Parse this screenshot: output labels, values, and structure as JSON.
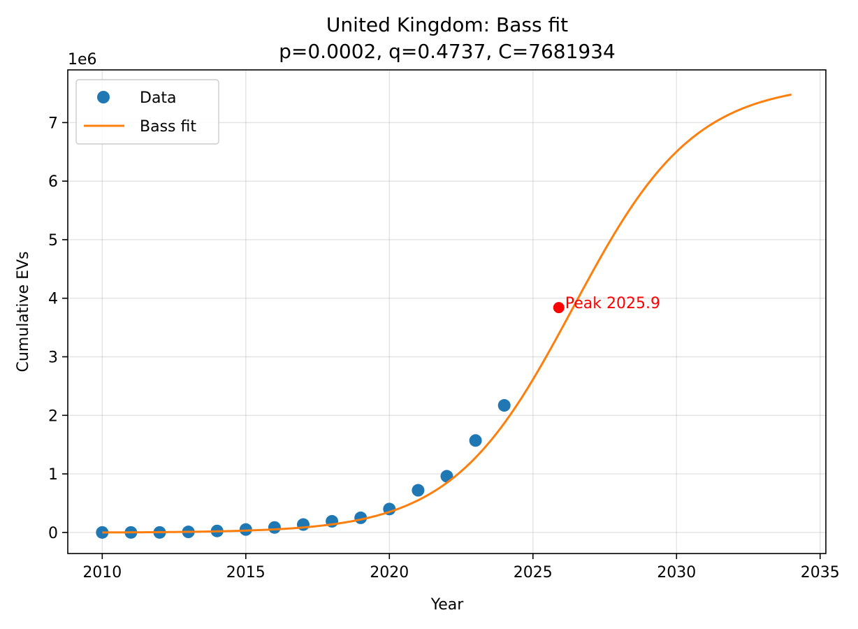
{
  "chart_data": {
    "type": "scatter",
    "title": "United Kingdom: Bass fit",
    "subtitle": "p=0.0002, q=0.4737, C=7681934",
    "xlabel": "Year",
    "ylabel": "Cumulative EVs",
    "y_multiplier_label": "1e6",
    "xlim": [
      2008.8,
      2035.2
    ],
    "ylim": [
      -0.36,
      7.9
    ],
    "x_ticks": [
      2010,
      2015,
      2020,
      2025,
      2030,
      2035
    ],
    "x_tick_labels": [
      "2010",
      "2015",
      "2020",
      "2025",
      "2030",
      "2035"
    ],
    "y_ticks": [
      0,
      1,
      2,
      3,
      4,
      5,
      6,
      7
    ],
    "y_tick_labels": [
      "0",
      "1",
      "2",
      "3",
      "4",
      "5",
      "6",
      "7"
    ],
    "grid": true,
    "legend_position": "top-left",
    "series": [
      {
        "name": "Data",
        "kind": "scatter",
        "color": "#1f77b4",
        "x": [
          2010,
          2011,
          2012,
          2013,
          2014,
          2015,
          2016,
          2017,
          2018,
          2019,
          2020,
          2021,
          2022,
          2023,
          2024
        ],
        "y": [
          0.0,
          0.0,
          0.0,
          0.01,
          0.025,
          0.05,
          0.085,
          0.135,
          0.19,
          0.25,
          0.4,
          0.72,
          0.96,
          1.57,
          2.17
        ]
      },
      {
        "name": "Bass fit",
        "kind": "line",
        "color": "#ff7f0e",
        "x_range": [
          2010,
          2034
        ],
        "p": 0.0002,
        "q": 0.4737,
        "C": 7681934
      }
    ],
    "annotations": [
      {
        "label": "Peak 2025.9",
        "x": 2025.9,
        "y": 3.84,
        "color": "#ff0000"
      }
    ]
  }
}
